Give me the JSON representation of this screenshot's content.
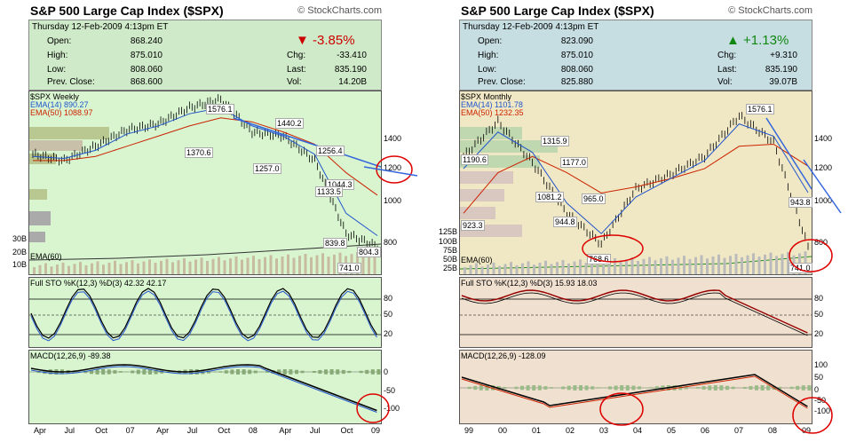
{
  "left": {
    "title": "S&P 500 Large Cap Index ($SPX)",
    "credit": "© StockCharts.com",
    "date": "Thursday  12-Feb-2009  4:13pm ET",
    "open_label": "Open:",
    "open": "868.240",
    "high_label": "High:",
    "high": "875.010",
    "low_label": "Low:",
    "low": "808.060",
    "prev_label": "Prev. Close:",
    "prev": "868.600",
    "change_pct": "▼ -3.85%",
    "chg_label": "Chg:",
    "chg": "-33.410",
    "last_label": "Last:",
    "last": "835.190",
    "vol_label": "Vol:",
    "vol": "14.20B",
    "price_legend": "$SPX Weekly",
    "ema14": "EMA(14) 890.27",
    "ema50": "EMA(50) 1088.97",
    "ema60": "EMA(60)",
    "sto": "Full STO %K(12,3) %D(3)  42.32  42.17",
    "macd": "MACD(12,26,9)  -89.38",
    "price_ticks": [
      "1400",
      "1200",
      "1000",
      "800"
    ],
    "vol_ticks": [
      "30B",
      "20B",
      "10B"
    ],
    "sto_ticks": [
      "80",
      "50",
      "20"
    ],
    "macd_ticks": [
      "0",
      "-50",
      "-100"
    ],
    "x_labels": [
      "Apr",
      "Jul",
      "Oct",
      "07",
      "Apr",
      "Jul",
      "Oct",
      "08",
      "Apr",
      "Jul",
      "Oct",
      "09"
    ],
    "annotations": [
      "1576.1",
      "1370.6",
      "1440.2",
      "1257.0",
      "1256.4",
      "1044.3",
      "1133.5",
      "839.8",
      "804.3",
      "741.0"
    ]
  },
  "right": {
    "title": "S&P 500 Large Cap Index ($SPX)",
    "credit": "© StockCharts.com",
    "date": "Thursday  12-Feb-2009  4:13pm ET",
    "open_label": "Open:",
    "open": "823.090",
    "high_label": "High:",
    "high": "875.010",
    "low_label": "Low:",
    "low": "808.060",
    "prev_label": "Prev. Close:",
    "prev": "825.880",
    "change_pct": "▲ +1.13%",
    "chg_label": "Chg:",
    "chg": "+9.310",
    "last_label": "Last:",
    "last": "835.190",
    "vol_label": "Vol:",
    "vol": "39.07B",
    "price_legend": "$SPX Monthly",
    "ema14": "EMA(14) 1101.78",
    "ema50": "EMA(50) 1232.35",
    "ema60": "EMA(60)",
    "sto": "Full STO %K(12,3) %D(3)  15.93  18.03",
    "macd": "MACD(12,26,9)  -128.09",
    "price_ticks": [
      "1400",
      "1200",
      "1000",
      "800"
    ],
    "vol_ticks": [
      "125B",
      "100B",
      "75B",
      "50B",
      "25B"
    ],
    "sto_ticks": [
      "80",
      "50",
      "20"
    ],
    "macd_ticks": [
      "100",
      "50",
      "0",
      "-50",
      "-100"
    ],
    "x_labels": [
      "99",
      "00",
      "01",
      "02",
      "03",
      "04",
      "05",
      "06",
      "07",
      "08",
      "09"
    ],
    "annotations": [
      "1576.1",
      "1190.6",
      "1315.9",
      "1177.0",
      "1081.2",
      "944.8",
      "965.0",
      "923.3",
      "768.6",
      "943.8",
      "741.0"
    ]
  },
  "colors": {
    "left_bg": "#d8f5d0",
    "right_bg": "#f0e8c4",
    "ema14": "#2255cc",
    "ema50": "#cc2200",
    "trendline": "#3366dd",
    "circle": "#dd0000",
    "down": "#cc0000",
    "up": "#118811"
  },
  "chart_data": [
    {
      "type": "line",
      "title": "S&P 500 Large Cap Index ($SPX)",
      "series": [
        {
          "name": "$SPX Weekly",
          "x": [
            "Apr",
            "Jul",
            "Oct",
            "07",
            "Apr",
            "Jul",
            "Oct",
            "08",
            "Apr",
            "Jul",
            "Oct",
            "09"
          ],
          "values": [
            1290,
            1260,
            1330,
            1410,
            1440,
            1520,
            1560,
            1400,
            1380,
            1260,
            900,
            835
          ]
        },
        {
          "name": "EMA(14)",
          "values": [
            1280,
            1270,
            1310,
            1390,
            1430,
            1490,
            1520,
            1430,
            1380,
            1290,
            1000,
            890
          ]
        },
        {
          "name": "EMA(50)",
          "values": [
            1260,
            1260,
            1280,
            1330,
            1380,
            1430,
            1470,
            1450,
            1400,
            1340,
            1200,
            1089
          ]
        }
      ],
      "ylim": [
        700,
        1600
      ]
    },
    {
      "type": "line",
      "title": "S&P 500 Large Cap Index ($SPX)",
      "series": [
        {
          "name": "$SPX Monthly",
          "x": [
            "99",
            "00",
            "01",
            "02",
            "03",
            "04",
            "05",
            "06",
            "07",
            "08",
            "09"
          ],
          "values": [
            1280,
            1450,
            1250,
            1000,
            850,
            1120,
            1190,
            1280,
            1480,
            1350,
            835
          ]
        },
        {
          "name": "EMA(14)",
          "values": [
            1220,
            1400,
            1300,
            1050,
            900,
            1080,
            1170,
            1260,
            1440,
            1380,
            1102
          ]
        },
        {
          "name": "EMA(50)",
          "values": [
            1000,
            1200,
            1280,
            1200,
            1100,
            1130,
            1170,
            1220,
            1330,
            1340,
            1232
          ]
        }
      ],
      "ylim": [
        700,
        1600
      ]
    }
  ]
}
